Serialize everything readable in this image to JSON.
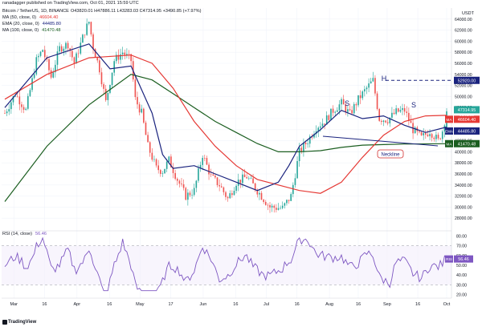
{
  "header": {
    "published": "ranadagger published on TradingView.com, Oct 01, 2021 15:59 UTC",
    "symbol_line": "Bitcoin / TetherUS, 1D, BINANCE",
    "ohlc": "O43820.01 H47886.11 L43283.03 C47314.95 +3490.85 (+7.97%)",
    "indicators": [
      {
        "label": "MA (50, close, 0)",
        "value": "46604.40",
        "color": "#d32f2f"
      },
      {
        "label": "EMA (20, close, 0)",
        "value": "44485.80",
        "color": "#1a237e"
      },
      {
        "label": "MA (100, close, 0)",
        "value": "41470.48",
        "color": "#1b5e20"
      }
    ],
    "rsi_label": "RSI (14, close)",
    "rsi_value": "56.46"
  },
  "footer": {
    "logo": "TradingView"
  },
  "colors": {
    "up": "#26a69a",
    "down": "#ef5350",
    "ma50": "#e53935",
    "ema20": "#1a237e",
    "ma100": "#1b5e20",
    "rsi": "#7e57c2",
    "annotation": "#1a237e",
    "neckline": "#d32f2f"
  },
  "chart_data": [
    {
      "type": "candlestick",
      "title": "Bitcoin / TetherUS, 1D, BINANCE",
      "unit": "USDT",
      "x_ticks": [
        "Mar",
        "16",
        "Apr",
        "16",
        "May",
        "17",
        "Jun",
        "16",
        "Jul",
        "16",
        "Aug",
        "16",
        "Sep",
        "16",
        "Oct"
      ],
      "y_ticks": [
        28000,
        30000,
        32000,
        34000,
        36000,
        38000,
        40000,
        42000,
        44000,
        46000,
        48000,
        50000,
        52000,
        54000,
        56000,
        58000,
        60000,
        62000,
        64000
      ],
      "ylim": [
        26000,
        66000
      ],
      "price_labels": [
        {
          "text": "52920.00",
          "value": 52920,
          "color": "#1a237e"
        },
        {
          "text": "47314.95",
          "value": 47314.95,
          "color": "#26a69a"
        },
        {
          "text": "46604.40",
          "value": 46604.4,
          "color": "#e53935",
          "tag": "MA"
        },
        {
          "text": "44485.80",
          "value": 44485.8,
          "color": "#1a237e",
          "tag": "EMA"
        },
        {
          "text": "41470.48",
          "value": 41470.48,
          "color": "#1b5e20",
          "tag": "MA"
        }
      ],
      "countdown": "08:01:00",
      "annotations": [
        "H",
        "S",
        "S",
        "Neckline"
      ],
      "resistance_level": 52920,
      "series_points": {
        "ma50": [
          [
            0,
            49500
          ],
          [
            20,
            54000
          ],
          [
            40,
            57000
          ],
          [
            60,
            57500
          ],
          [
            70,
            56000
          ],
          [
            80,
            51500
          ],
          [
            90,
            45500
          ],
          [
            100,
            41000
          ],
          [
            110,
            37500
          ],
          [
            120,
            35000
          ],
          [
            130,
            34000
          ],
          [
            140,
            33000
          ],
          [
            150,
            32500
          ],
          [
            160,
            34500
          ],
          [
            170,
            39000
          ],
          [
            180,
            43000
          ],
          [
            190,
            45500
          ],
          [
            200,
            46500
          ],
          [
            210,
            46600
          ]
        ],
        "ema20": [
          [
            0,
            48000
          ],
          [
            20,
            57000
          ],
          [
            40,
            59500
          ],
          [
            50,
            55000
          ],
          [
            60,
            55500
          ],
          [
            70,
            47000
          ],
          [
            75,
            39500
          ],
          [
            80,
            37000
          ],
          [
            90,
            37500
          ],
          [
            100,
            36000
          ],
          [
            110,
            34500
          ],
          [
            120,
            33000
          ],
          [
            130,
            34500
          ],
          [
            135,
            37500
          ],
          [
            140,
            41000
          ],
          [
            150,
            44000
          ],
          [
            160,
            47500
          ],
          [
            170,
            46000
          ],
          [
            180,
            46500
          ],
          [
            190,
            44800
          ],
          [
            200,
            43500
          ],
          [
            210,
            44485
          ]
        ],
        "ma100": [
          [
            0,
            31000
          ],
          [
            20,
            41000
          ],
          [
            40,
            48500
          ],
          [
            60,
            54000
          ],
          [
            70,
            53000
          ],
          [
            80,
            50500
          ],
          [
            90,
            48000
          ],
          [
            100,
            45500
          ],
          [
            110,
            43500
          ],
          [
            120,
            41500
          ],
          [
            130,
            40000
          ],
          [
            140,
            40000
          ],
          [
            150,
            40200
          ],
          [
            160,
            40800
          ],
          [
            170,
            41200
          ],
          [
            180,
            41300
          ],
          [
            190,
            41400
          ],
          [
            210,
            41470
          ]
        ]
      }
    },
    {
      "type": "line",
      "title": "RSI (14, close)",
      "y_ticks": [
        20,
        30,
        40,
        50,
        60,
        70,
        80
      ],
      "reference_lines": [
        30,
        70
      ],
      "ylim": [
        18,
        82
      ],
      "last_value": 56.46
    }
  ]
}
